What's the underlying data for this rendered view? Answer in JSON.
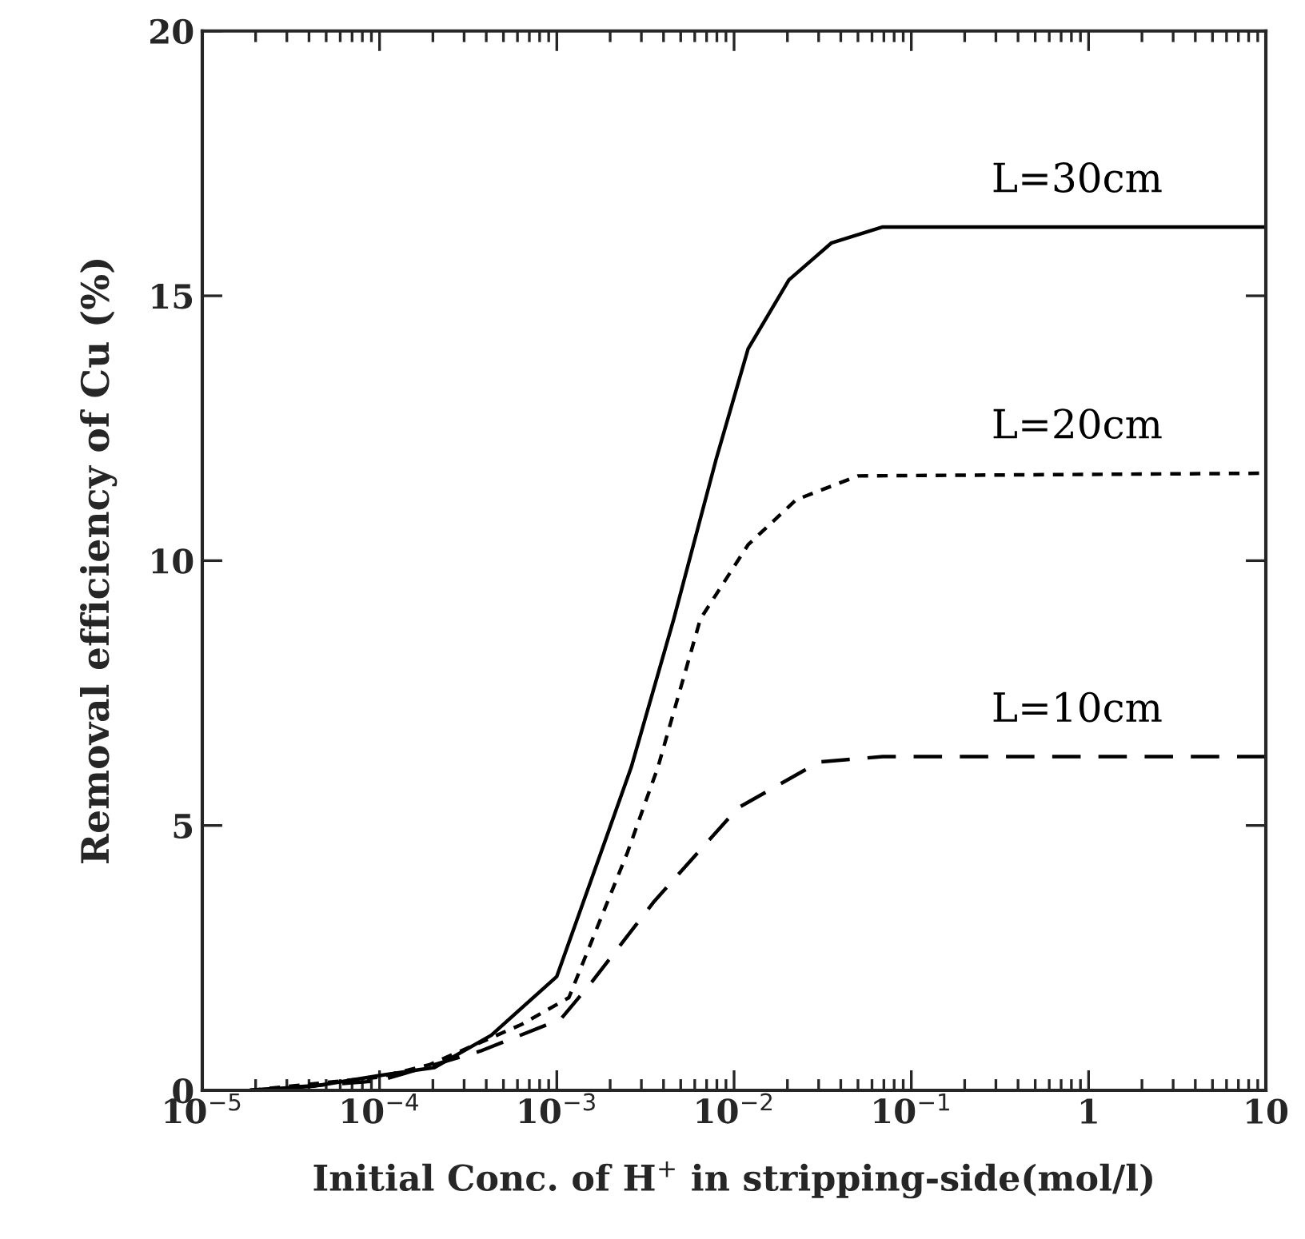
{
  "chart_data": {
    "type": "line",
    "xlabel": "Initial Conc. of H$^{+}$ in stripping-side(mol/l)",
    "ylabel": "Removal efficiency of Cu (%)",
    "log": "x",
    "grid": false,
    "legend": false,
    "marker": "none",
    "xlim": [
      1e-05,
      10
    ],
    "ylim": [
      0,
      20
    ],
    "xticks": [
      {
        "value": 1e-05,
        "label": "10$^{−5}$"
      },
      {
        "value": 0.0001,
        "label": "10$^{−4}$"
      },
      {
        "value": 0.001,
        "label": "10$^{−3}$"
      },
      {
        "value": 0.01,
        "label": "10$^{−2}$"
      },
      {
        "value": 0.1,
        "label": "10$^{−1}$"
      },
      1,
      10
    ],
    "yticks": [
      0,
      5,
      10,
      15,
      20
    ],
    "series": [
      {
        "name": "L=30cm",
        "color": "#000000",
        "line_style": "solid",
        "x": [
          1.86e-05,
          4.27e-05,
          0.0001,
          0.000204,
          0.000427,
          0.001,
          0.00178,
          0.00263,
          0.00457,
          0.0079,
          0.012,
          0.0204,
          0.0355,
          0.069,
          10
        ],
        "values": [
          0,
          0.08,
          0.28,
          0.43,
          1.04,
          2.15,
          4.5,
          6.1,
          8.9,
          11.9,
          14.0,
          15.3,
          16.0,
          16.3,
          16.3
        ]
      },
      {
        "name": "L=20cm",
        "color": "#000000",
        "line_style": "dotted",
        "x": [
          1.86e-05,
          0.0001,
          0.00019,
          0.00063,
          0.00117,
          0.00251,
          0.00372,
          0.00646,
          0.012,
          0.0224,
          0.05,
          10
        ],
        "values": [
          0,
          0.25,
          0.48,
          1.24,
          1.75,
          4.5,
          6.1,
          8.9,
          10.3,
          11.15,
          11.6,
          11.65
        ]
      },
      {
        "name": "L=10cm",
        "color": "#000000",
        "line_style": "dashed",
        "x": [
          1.86e-05,
          0.0001,
          0.00037,
          0.00105,
          0.00158,
          0.00355,
          0.0105,
          0.0302,
          0.069,
          10
        ],
        "values": [
          0,
          0.18,
          0.74,
          1.34,
          2.05,
          3.57,
          5.33,
          6.2,
          6.3,
          6.3
        ]
      }
    ]
  }
}
